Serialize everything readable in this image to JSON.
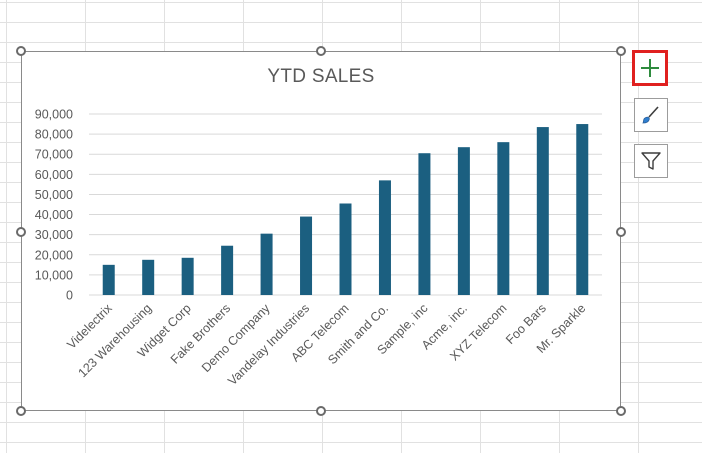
{
  "chart_data": {
    "type": "bar",
    "title": "YTD SALES",
    "categories": [
      "Videlectrix",
      "123 Warehousing",
      "Widget Corp",
      "Fake Brothers",
      "Demo Company",
      "Vandelay Industries",
      "ABC Telecom",
      "Smith and Co.",
      "Sample, inc",
      "Acme, inc.",
      "XYZ Telecom",
      "Foo Bars",
      "Mr. Sparkle"
    ],
    "values": [
      15000,
      17500,
      18500,
      24500,
      30500,
      39000,
      45500,
      57000,
      70500,
      73500,
      76000,
      83500,
      85000
    ],
    "ylim": [
      0,
      90000
    ],
    "yticks": [
      "0",
      "10,000",
      "20,000",
      "30,000",
      "40,000",
      "50,000",
      "60,000",
      "70,000",
      "80,000",
      "90,000"
    ],
    "xlabel": "",
    "ylabel": "",
    "grid": true,
    "bar_color": "#1b5f80"
  },
  "side_buttons": {
    "chart_elements": "plus-icon",
    "chart_styles": "brush-icon",
    "chart_filters": "filter-icon",
    "active_color": "#e0201f"
  }
}
